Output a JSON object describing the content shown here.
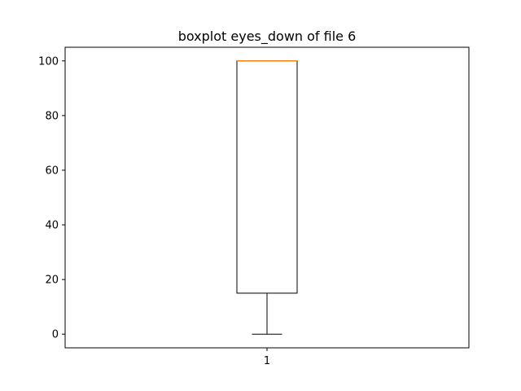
{
  "chart_data": {
    "type": "boxplot",
    "title": "boxplot eyes_down of file 6",
    "xlabel": "",
    "ylabel": "",
    "categories": [
      "1"
    ],
    "boxes": [
      {
        "category": "1",
        "whisker_low": 0,
        "q1": 15,
        "median": 100,
        "q3": 100,
        "whisker_high": 100
      }
    ],
    "ylim": [
      -5,
      105
    ],
    "yticks": [
      0,
      20,
      40,
      60,
      80,
      100
    ],
    "grid": false,
    "colors": {
      "box": "#000000",
      "median": "#ff7f0e"
    }
  }
}
